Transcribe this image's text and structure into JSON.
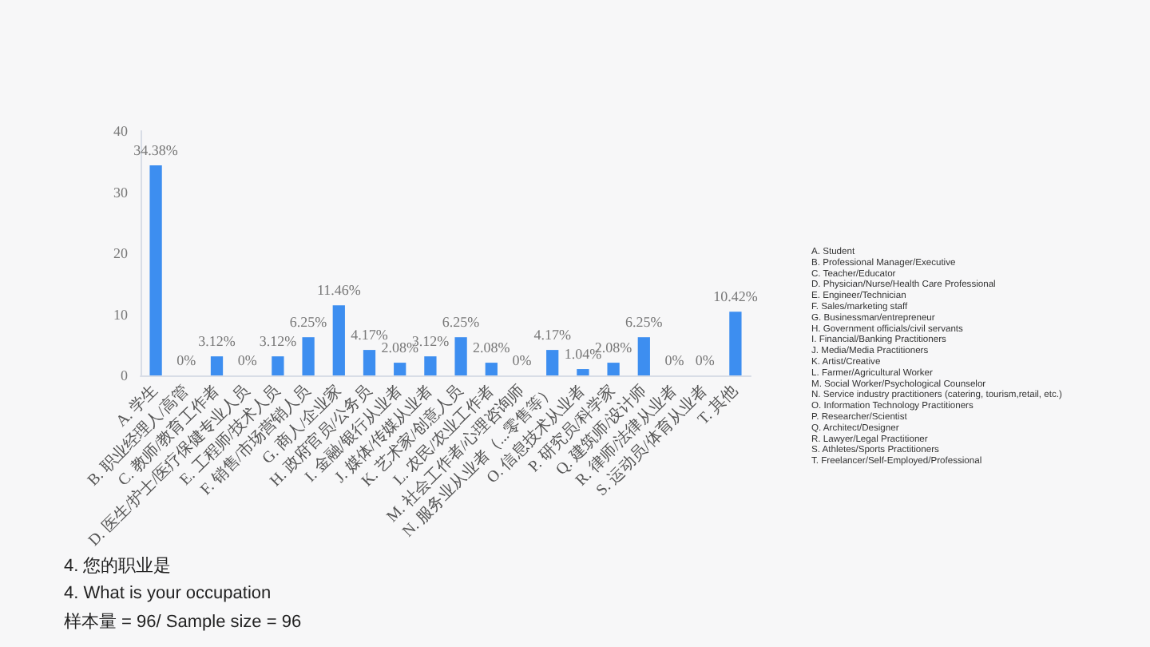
{
  "chart_data": {
    "type": "bar",
    "title": "4. 您的职业是",
    "subtitle": "4. What is your occupation",
    "categories": [
      "A. 学生",
      "B. 职业经理人/高管",
      "C. 教师/教育工作者",
      "D. 医生/护士/医疗保健专业人员",
      "E. 工程师/技术人员",
      "F. 销售/市场营销人员",
      "G. 商人/企业家",
      "H. 政府官员/公务员",
      "I. 金融/银行从业者",
      "J. 媒体/传媒从业者",
      "K. 艺术家/创意人员",
      "L. 农民/农业工作者",
      "M. 社会工作者/心理咨询师",
      "N. 服务业从业者（...零售等）",
      "O. 信息技术从业者",
      "P. 研究员/科学家",
      "Q. 建筑师/设计师",
      "R. 律师/法律从业者",
      "S. 运动员/体育从业者",
      "T. 其他"
    ],
    "values": [
      34.38,
      0,
      3.12,
      0,
      3.12,
      6.25,
      11.46,
      4.17,
      2.08,
      3.12,
      6.25,
      2.08,
      0,
      4.17,
      1.04,
      2.08,
      6.25,
      0,
      0,
      10.42
    ],
    "value_labels": [
      "34.38%",
      "0%",
      "3.12%",
      "0%",
      "3.12%",
      "6.25%",
      "11.46%",
      "4.17%",
      "2.08%",
      "3.12%",
      "6.25%",
      "2.08%",
      "0%",
      "4.17%",
      "1.04%",
      "2.08%",
      "6.25%",
      "0%",
      "0%",
      "10.42%"
    ],
    "color": "#3d8ef0",
    "ylim": [
      0,
      40
    ],
    "yticks": [
      0,
      10,
      20,
      30,
      40
    ],
    "grid": false,
    "annotations": [
      "样本量 = 96/ Sample size = 96",
      "A. Student",
      "B. Professional Manager/Executive",
      "C. Teacher/Educator",
      "D. Physician/Nurse/Health Care Professional",
      "E. Engineer/Technician",
      "F. Sales/marketing staff",
      "G. Businessman/entrepreneur",
      "H. Government officials/civil servants",
      "I. Financial/Banking Practitioners",
      "J. Media/Media Practitioners",
      "K. Artist/Creative",
      "L. Farmer/Agricultural Worker",
      "M. Social Worker/Psychological Counselor",
      "N. Service industry practitioners (catering, tourism,retail, etc.)",
      "O. Information Technology Practitioners",
      "P. Researcher/Scientist",
      "Q. Architect/Designer",
      "R. Lawyer/Legal Practitioner",
      "S. Athletes/Sports Practitioners",
      "T. Freelancer/Self-Employed/Professional"
    ]
  }
}
